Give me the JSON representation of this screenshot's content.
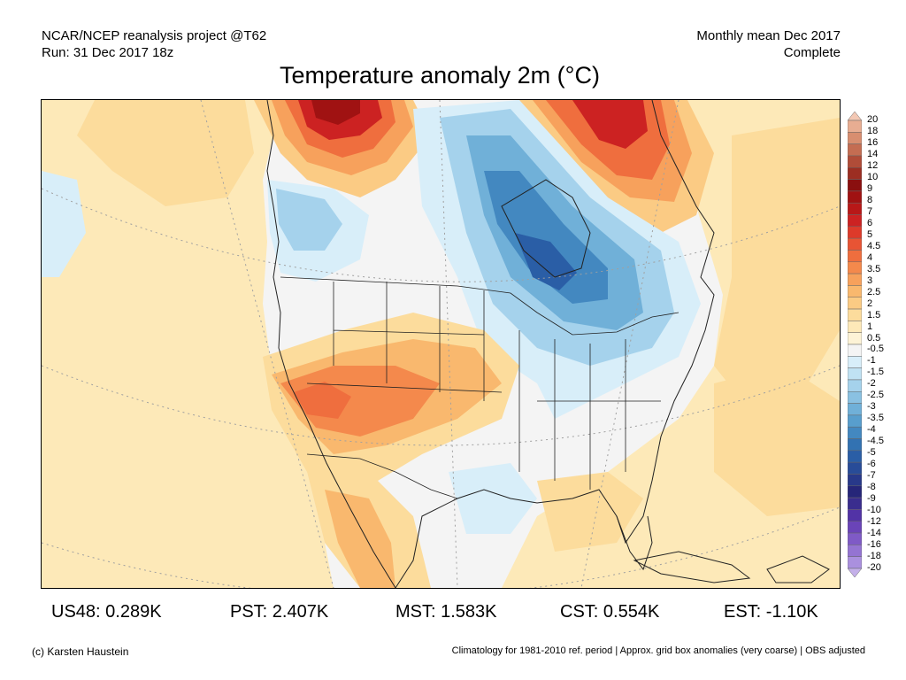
{
  "header": {
    "left_line1": "NCAR/NCEP reanalysis project @T62",
    "left_line2": "Run: 31 Dec 2017 18z",
    "right_line1": "Monthly mean Dec 2017",
    "right_line2": "Complete"
  },
  "title": "Temperature anomaly 2m (°C)",
  "colorbar": {
    "labels": [
      "20",
      "18",
      "16",
      "14",
      "12",
      "10",
      "9",
      "8",
      "7",
      "6",
      "5",
      "4.5",
      "4",
      "3.5",
      "3",
      "2.5",
      "2",
      "1.5",
      "1",
      "0.5",
      "-0.5",
      "-1",
      "-1.5",
      "-2",
      "-2.5",
      "-3",
      "-3.5",
      "-4",
      "-4.5",
      "-5",
      "-6",
      "-7",
      "-8",
      "-9",
      "-10",
      "-12",
      "-14",
      "-16",
      "-18",
      "-20"
    ],
    "colors": [
      "#f3c8b4",
      "#e8ad92",
      "#d88e70",
      "#c46d52",
      "#b04c38",
      "#9c2e22",
      "#8a0f0f",
      "#a01212",
      "#b81818",
      "#cc2222",
      "#dd3a2a",
      "#e85434",
      "#ef6e3e",
      "#f4894c",
      "#f7a15c",
      "#f9b86e",
      "#fbcb84",
      "#fcdc9c",
      "#fde9b8",
      "#fdf3d6",
      "#f4f4f4",
      "#d8eef9",
      "#c0e2f3",
      "#a5d2ec",
      "#8ac1e2",
      "#70b0d8",
      "#589ecd",
      "#4388c0",
      "#3272b2",
      "#2a5ea6",
      "#284c98",
      "#28398a",
      "#262679",
      "#3a2d8e",
      "#5233a6",
      "#6a44b8",
      "#7f5ac6",
      "#9474d2",
      "#aa90de",
      "#c4b0e9"
    ]
  },
  "regions": [
    {
      "label": "US48: 0.289K"
    },
    {
      "label": "PST: 2.407K"
    },
    {
      "label": "MST: 1.583K"
    },
    {
      "label": "CST: 0.554K"
    },
    {
      "label": "EST: -1.10K"
    }
  ],
  "footer": {
    "left": "(c) Karsten Haustein",
    "right": "Climatology for 1981-2010 ref. period | Approx. grid box anomalies (very coarse) | OBS adjusted"
  }
}
